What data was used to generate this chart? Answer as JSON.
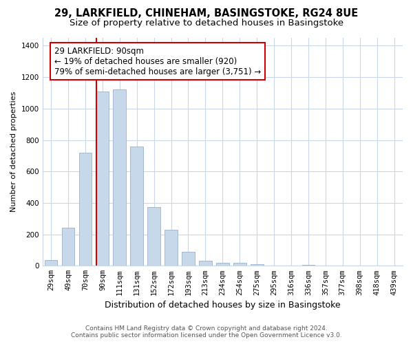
{
  "title": "29, LARKFIELD, CHINEHAM, BASINGSTOKE, RG24 8UE",
  "subtitle": "Size of property relative to detached houses in Basingstoke",
  "xlabel": "Distribution of detached houses by size in Basingstoke",
  "ylabel": "Number of detached properties",
  "bar_labels": [
    "29sqm",
    "49sqm",
    "70sqm",
    "90sqm",
    "111sqm",
    "131sqm",
    "152sqm",
    "172sqm",
    "193sqm",
    "213sqm",
    "234sqm",
    "254sqm",
    "275sqm",
    "295sqm",
    "316sqm",
    "336sqm",
    "357sqm",
    "377sqm",
    "398sqm",
    "418sqm",
    "439sqm"
  ],
  "bar_values": [
    35,
    240,
    720,
    1110,
    1120,
    760,
    375,
    228,
    90,
    30,
    20,
    20,
    10,
    0,
    0,
    5,
    0,
    0,
    0,
    0,
    0
  ],
  "bar_color": "#c8d8eb",
  "bar_edge_color": "#9ab0c8",
  "vline_color": "#cc0000",
  "vline_index": 3,
  "annotation_line1": "29 LARKFIELD: 90sqm",
  "annotation_line2": "← 19% of detached houses are smaller (920)",
  "annotation_line3": "79% of semi-detached houses are larger (3,751) →",
  "annotation_box_color": "#ffffff",
  "annotation_box_edge": "#cc0000",
  "ylim": [
    0,
    1450
  ],
  "yticks": [
    0,
    200,
    400,
    600,
    800,
    1000,
    1200,
    1400
  ],
  "footer_line1": "Contains HM Land Registry data © Crown copyright and database right 2024.",
  "footer_line2": "Contains public sector information licensed under the Open Government Licence v3.0.",
  "bg_color": "#ffffff",
  "grid_color": "#c8d8e8",
  "title_fontsize": 10.5,
  "subtitle_fontsize": 9.5,
  "ylabel_fontsize": 8,
  "xlabel_fontsize": 9,
  "tick_fontsize": 7.5,
  "annotation_fontsize": 8.5,
  "footer_fontsize": 6.5
}
